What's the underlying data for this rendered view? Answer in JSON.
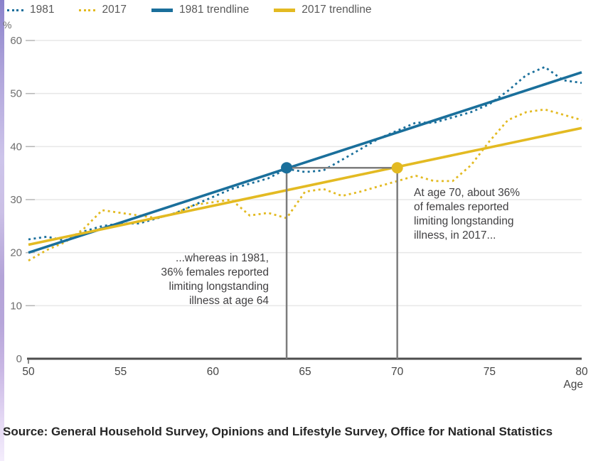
{
  "legend": {
    "items": [
      {
        "label": "1981",
        "color": "#1a6f9b",
        "style": "dotted"
      },
      {
        "label": "2017",
        "color": "#e3ba22",
        "style": "dotted"
      },
      {
        "label": "1981 trendline",
        "color": "#1a6f9b",
        "style": "solid"
      },
      {
        "label": "2017 trendline",
        "color": "#e3ba22",
        "style": "solid"
      }
    ]
  },
  "chart_data": {
    "type": "line",
    "title": "",
    "xlabel": "Age",
    "ylabel": "%",
    "xlim": [
      50,
      80
    ],
    "ylim": [
      0,
      60
    ],
    "x_ticks": [
      50,
      55,
      60,
      65,
      70,
      75,
      80
    ],
    "y_ticks": [
      0,
      10,
      20,
      30,
      40,
      50,
      60
    ],
    "grid": "horizontal",
    "legend_position": "top",
    "x": [
      50,
      51,
      52,
      53,
      54,
      55,
      56,
      57,
      58,
      59,
      60,
      61,
      62,
      63,
      64,
      65,
      66,
      67,
      68,
      69,
      70,
      71,
      72,
      73,
      74,
      75,
      76,
      77,
      78,
      79,
      80
    ],
    "series": [
      {
        "name": "1981",
        "style": "dotted",
        "color": "#1a6f9b",
        "values": [
          22.5,
          23,
          22.3,
          24,
          25,
          25.5,
          25.5,
          26.5,
          27.5,
          29,
          30.5,
          32,
          33,
          34,
          35.8,
          35.2,
          35.5,
          37.5,
          39.5,
          41.5,
          43,
          44.5,
          44.5,
          45.5,
          46.5,
          48,
          50.5,
          53.5,
          55,
          52.5,
          52
        ]
      },
      {
        "name": "2017",
        "style": "dotted",
        "color": "#e3ba22",
        "values": [
          18.5,
          20.5,
          22,
          24.5,
          28,
          27.5,
          27,
          26.5,
          27.5,
          29,
          29.5,
          30,
          27,
          27.5,
          26.5,
          31.5,
          32,
          30.7,
          31.5,
          32.5,
          33.5,
          34.5,
          33.5,
          33.5,
          36.5,
          41,
          45,
          46.5,
          47,
          46,
          45
        ]
      },
      {
        "name": "1981 trendline",
        "style": "solid",
        "color": "#1a6f9b",
        "x": [
          50,
          80
        ],
        "values": [
          20,
          54
        ]
      },
      {
        "name": "2017 trendline",
        "style": "solid",
        "color": "#e3ba22",
        "x": [
          50,
          80
        ],
        "values": [
          21.5,
          43.5
        ]
      }
    ],
    "markers": [
      {
        "series": "1981 trendline",
        "age": 64,
        "pct": 36,
        "color": "#1a6f9b"
      },
      {
        "series": "2017 trendline",
        "age": 70,
        "pct": 36,
        "color": "#e3ba22"
      }
    ],
    "connector": {
      "age_start": 64,
      "age_end": 70,
      "pct": 36,
      "color": "#7d7d7d"
    },
    "annotations": [
      {
        "text": "...whereas in 1981,\n36% females reported\nlimiting longstanding\nillness at age 64",
        "align": "right",
        "anchor_age": 64
      },
      {
        "text": "At age 70, about 36%\nof females reported\nlimiting longstanding\nillness, in 2017...",
        "align": "left",
        "anchor_age": 70
      }
    ],
    "axis_colors": {
      "axis_line": "#4d4d4d",
      "gridline": "#e7e7e7",
      "y_tick_label": "#6e6e6e",
      "x_tick_label": "#454545"
    }
  },
  "source": {
    "text": "Source: General Household Survey, Opinions and Lifestyle Survey, Office for National Statistics"
  }
}
